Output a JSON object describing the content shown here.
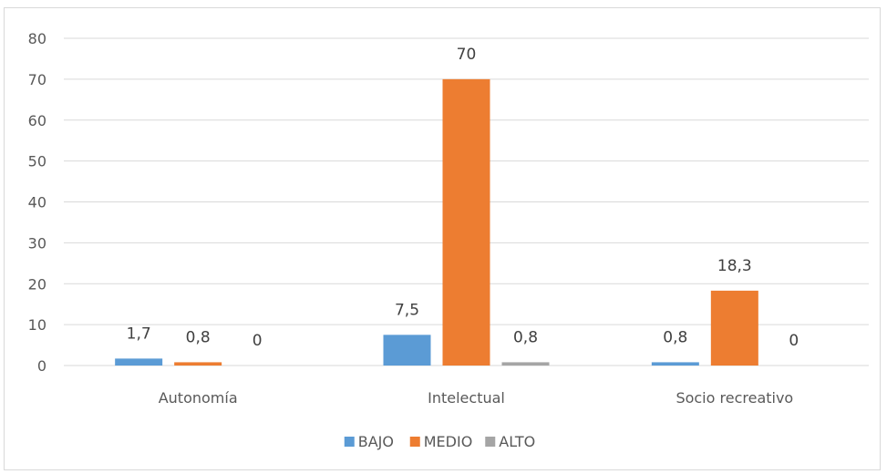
{
  "chart_data": {
    "type": "bar",
    "categories": [
      "Autonomía",
      "Intelectual",
      "Socio recreativo"
    ],
    "series": [
      {
        "name": "BAJO",
        "values": [
          1.7,
          7.5,
          0.8
        ],
        "labels": [
          "1,7",
          "7,5",
          "0,8"
        ],
        "color": "#5b9bd5"
      },
      {
        "name": "MEDIO",
        "values": [
          0.8,
          70,
          18.3
        ],
        "labels": [
          "0,8",
          "70",
          "18,3"
        ],
        "color": "#ed7d31"
      },
      {
        "name": "ALTO",
        "values": [
          0,
          0.8,
          0
        ],
        "labels": [
          "0",
          "0,8",
          "0"
        ],
        "color": "#a5a5a5"
      }
    ],
    "ylim": [
      0,
      80
    ],
    "yticks": [
      0,
      10,
      20,
      30,
      40,
      50,
      60,
      70,
      80
    ],
    "grid": true,
    "legend_position": "bottom",
    "title": "",
    "xlabel": "",
    "ylabel": ""
  }
}
